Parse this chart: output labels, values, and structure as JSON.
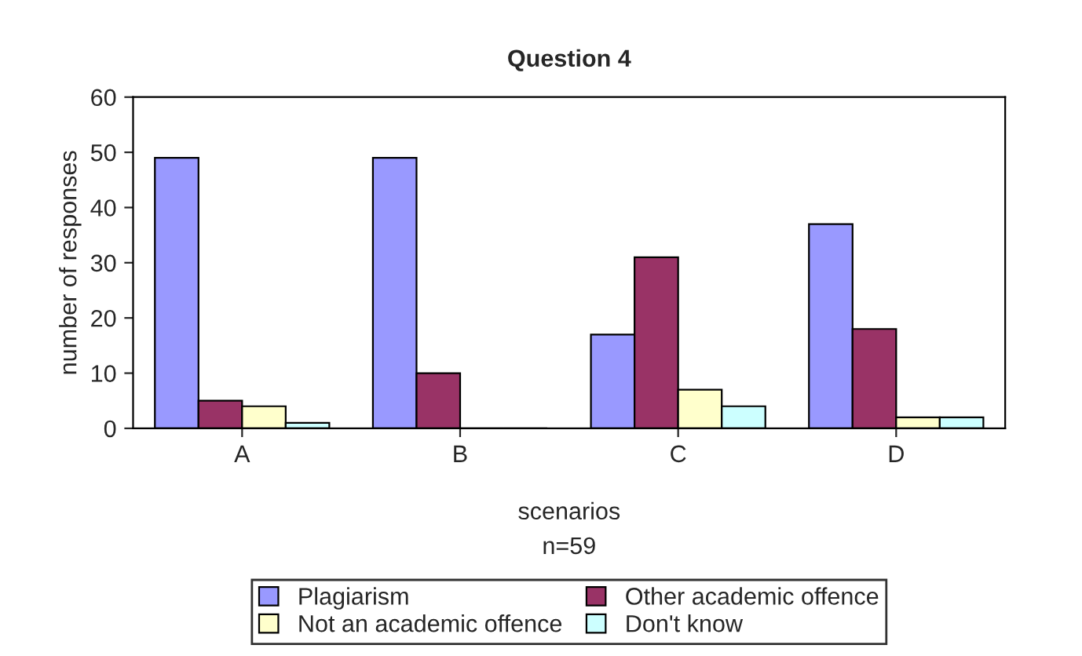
{
  "chart_data": {
    "type": "bar",
    "title": "Question 4",
    "xlabel": "scenarios",
    "ylabel": "number of responses",
    "annotations": [
      "n=59"
    ],
    "categories": [
      "A",
      "B",
      "C",
      "D"
    ],
    "series": [
      {
        "name": "Plagiarism",
        "color": "#9999ff",
        "values": [
          49,
          49,
          17,
          37
        ]
      },
      {
        "name": "Other academic offence",
        "color": "#993366",
        "values": [
          5,
          10,
          31,
          18
        ]
      },
      {
        "name": "Not an academic offence",
        "color": "#ffffcc",
        "values": [
          4,
          0,
          7,
          2
        ]
      },
      {
        "name": "Don't know",
        "color": "#ccffff",
        "values": [
          1,
          0,
          4,
          2
        ]
      }
    ],
    "ylim": [
      0,
      60
    ],
    "yticks": [
      0,
      10,
      20,
      30,
      40,
      50,
      60
    ],
    "grid": false,
    "legend": "bottom"
  }
}
